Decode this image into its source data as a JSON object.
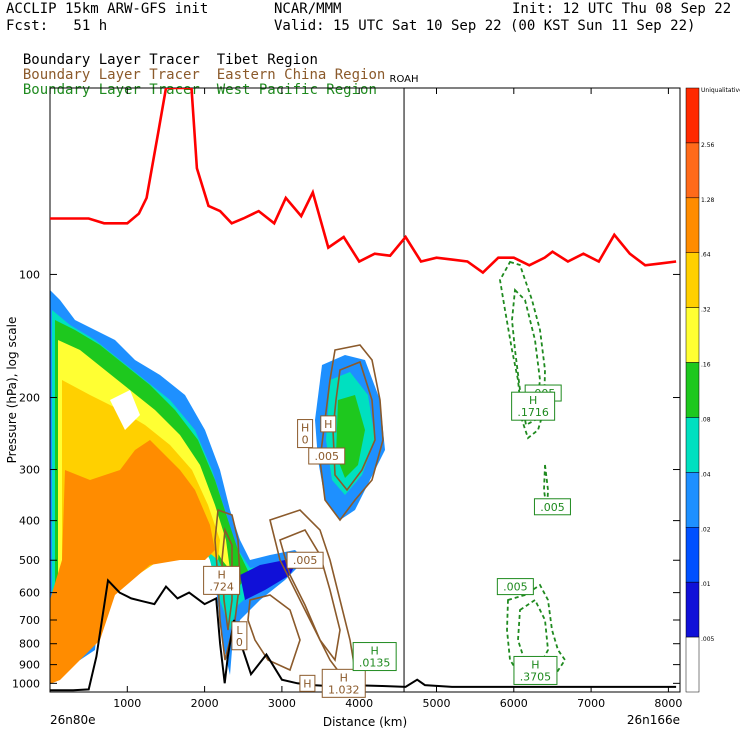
{
  "header": {
    "model": "ACCLIP 15km ARW-GFS init",
    "org": "NCAR/MMM",
    "init": "Init: 12 UTC Thu 08 Sep 22",
    "fcst": "Fcst:   51 h",
    "valid": "Valid: 15 UTC Sat 10 Sep 22 (00 KST Sun 11 Sep 22)",
    "tracers": [
      {
        "prefix": "Boundary Layer Tracer",
        "region": "Tibet Region",
        "color": "#000000"
      },
      {
        "prefix": "Boundary Layer Tracer",
        "region": "Eastern China Region",
        "color": "#8B5A2B"
      },
      {
        "prefix": "Boundary Layer Tracer",
        "region": "West Pacific Region",
        "color": "#1f8a1f"
      }
    ]
  },
  "chart_data": {
    "type": "heatmap",
    "xlabel": "Distance (km)",
    "ylabel": "Pressure (hPa), log scale",
    "x_ticks": [
      1000,
      2000,
      3000,
      4000,
      5000,
      6000,
      7000,
      8000
    ],
    "y_ticks": [
      100,
      200,
      300,
      400,
      500,
      600,
      700,
      800,
      900,
      1000
    ],
    "xlim": [
      0,
      8150
    ],
    "ylim": [
      1050,
      35
    ],
    "x_left_label": "26n80e",
    "x_right_label": "26n166e",
    "marker": {
      "label": "ROAH",
      "x": 4580
    },
    "colorbar": {
      "labels": [
        "Uniqualitative",
        "2.56",
        "1.28",
        ".64",
        ".32",
        ".16",
        ".08",
        ".04",
        ".02",
        ".01",
        ".005"
      ],
      "colors": [
        "#ff2a00",
        "#ff6a1a",
        "#ff8c00",
        "#ffd000",
        "#ffff33",
        "#1ec81e",
        "#00e0c0",
        "#1e90ff",
        "#0050ff",
        "#1010d8",
        "#ffffff"
      ]
    },
    "series": [
      {
        "color": "#ff0000",
        "x": [
          0,
          500,
          700,
          1000,
          1150,
          1250,
          1400,
          1500,
          1700,
          1800,
          1830,
          1900,
          2050,
          2200,
          2350,
          2500,
          2700,
          2900,
          3050,
          3250,
          3400,
          3600,
          3800,
          4000,
          4200,
          4400,
          4600,
          4800,
          5000,
          5200,
          5400,
          5600,
          5800,
          6000,
          6200,
          6400,
          6500,
          6700,
          6900,
          7100,
          7300,
          7500,
          7700,
          7900,
          8100
        ],
        "y": [
          73,
          73,
          75,
          75,
          71,
          65,
          45,
          35,
          35,
          35,
          35,
          55,
          68,
          70,
          75,
          73,
          70,
          75,
          65,
          72,
          63,
          86,
          81,
          93,
          89,
          90,
          81,
          93,
          91,
          92,
          93,
          99,
          91,
          91,
          95,
          91,
          88,
          93,
          89,
          93,
          80,
          89,
          95,
          94,
          93
        ]
      },
      {
        "color": "#000000",
        "x": [
          0,
          300,
          500,
          600,
          750,
          900,
          1050,
          1200,
          1350,
          1500,
          1650,
          1800,
          2000,
          2150,
          2200,
          2260,
          2300,
          2380,
          2450,
          2600,
          2800,
          3000,
          3200,
          3400,
          3600,
          3900,
          4300,
          4600,
          4750,
          4850,
          5200,
          6000,
          7000,
          8100
        ],
        "y": [
          1040,
          1040,
          1035,
          860,
          560,
          600,
          620,
          630,
          640,
          580,
          620,
          600,
          640,
          620,
          800,
          1000,
          860,
          700,
          780,
          950,
          850,
          980,
          1000,
          1010,
          1015,
          1010,
          1015,
          1020,
          980,
          1010,
          1020,
          1020,
          1020,
          1020
        ]
      }
    ],
    "labels": [
      {
        "text": "H",
        "text2": "0",
        "x": 3300,
        "y": 245,
        "color": "#8B5A2B"
      },
      {
        "text": "H",
        "text2": "",
        "x": 3600,
        "y": 232,
        "color": "#8B5A2B"
      },
      {
        "text": ".005",
        "text2": "",
        "x": 3580,
        "y": 278,
        "color": "#8B5A2B"
      },
      {
        "text": ".005",
        "text2": "",
        "x": 3300,
        "y": 500,
        "color": "#8B5A2B"
      },
      {
        "text": "H",
        "text2": ".724",
        "x": 2220,
        "y": 560,
        "color": "#8B5A2B"
      },
      {
        "text": "L",
        "text2": "0",
        "x": 2450,
        "y": 765,
        "color": "#8B5A2B"
      },
      {
        "text": "H",
        "text2": "",
        "x": 3330,
        "y": 1000,
        "color": "#8B5A2B"
      },
      {
        "text": "H",
        "text2": "1.032",
        "x": 3800,
        "y": 1000,
        "color": "#8B5A2B"
      },
      {
        "text": "H",
        "text2": ".0135",
        "x": 4200,
        "y": 860,
        "color": "#1f8a1f"
      },
      {
        "text": ".005",
        "text2": "",
        "x": 6380,
        "y": 195,
        "color": "#1f8a1f"
      },
      {
        "text": "H",
        "text2": ".1716",
        "x": 6250,
        "y": 210,
        "color": "#1f8a1f"
      },
      {
        "text": ".005",
        "text2": "",
        "x": 6500,
        "y": 370,
        "color": "#1f8a1f"
      },
      {
        "text": ".005",
        "text2": "",
        "x": 6020,
        "y": 580,
        "color": "#1f8a1f"
      },
      {
        "text": "H",
        "text2": ".3705",
        "x": 6280,
        "y": 930,
        "color": "#1f8a1f"
      }
    ]
  }
}
